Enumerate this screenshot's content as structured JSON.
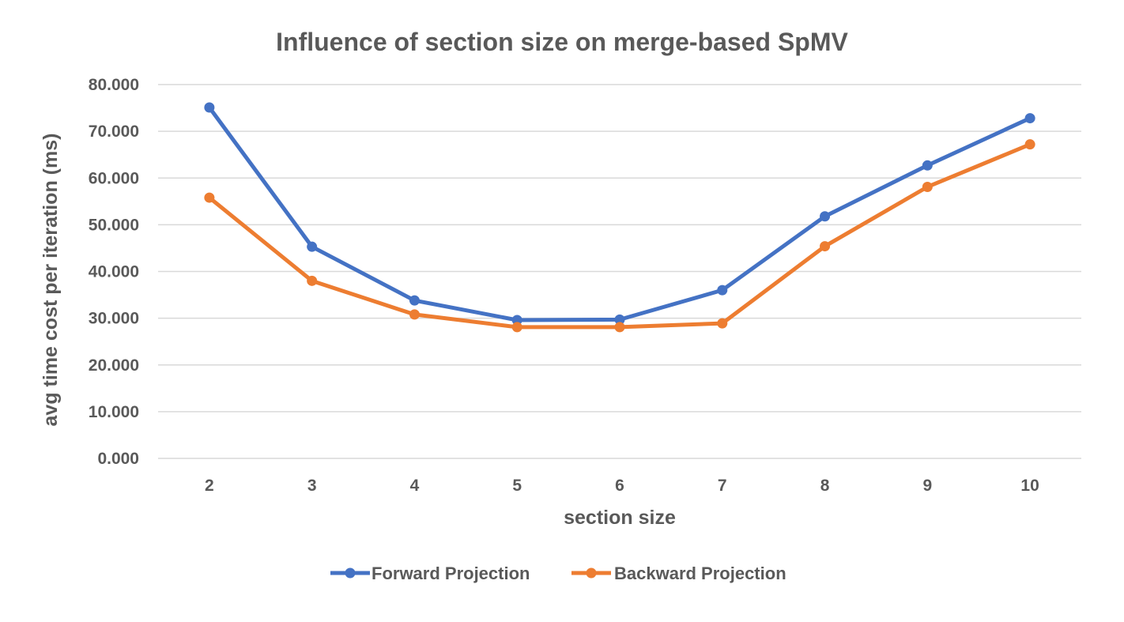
{
  "chart_data": {
    "type": "line",
    "title": "Influence of section size on merge-based SpMV",
    "xlabel": "section size",
    "ylabel": "avg time cost per iteration (ms)",
    "categories": [
      "2",
      "3",
      "4",
      "5",
      "6",
      "7",
      "8",
      "9",
      "10"
    ],
    "ylim": [
      0,
      80
    ],
    "yticks": [
      0,
      10,
      20,
      30,
      40,
      50,
      60,
      70,
      80
    ],
    "ytick_labels": [
      "0.000",
      "10.000",
      "20.000",
      "30.000",
      "40.000",
      "50.000",
      "60.000",
      "70.000",
      "80.000"
    ],
    "grid": true,
    "legend_position": "bottom",
    "series": [
      {
        "name": "Forward Projection",
        "color": "#4472c4",
        "values": [
          75.1,
          45.3,
          33.8,
          29.6,
          29.7,
          36.0,
          51.8,
          62.7,
          72.8
        ]
      },
      {
        "name": "Backward Projection",
        "color": "#ed7d31",
        "values": [
          55.8,
          38.0,
          30.8,
          28.1,
          28.1,
          28.9,
          45.4,
          58.1,
          67.2
        ]
      }
    ]
  }
}
